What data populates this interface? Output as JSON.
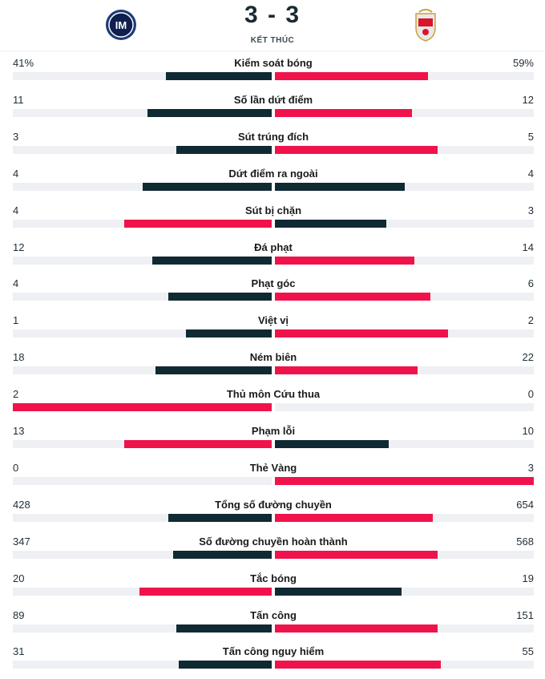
{
  "match": {
    "home_logo": "inter-logo",
    "away_logo": "benfica-logo",
    "score": "3 - 3",
    "status": "KẾT THÚC"
  },
  "colors": {
    "dark": "#0f2a33",
    "red": "#f0134b",
    "track": "#eef0f3"
  },
  "stats": [
    {
      "name": "Kiểm soát bóng",
      "home": "41%",
      "away": "59%",
      "home_frac": 0.41,
      "away_frac": 0.59,
      "home_color": "dark",
      "away_color": "red"
    },
    {
      "name": "Số lần dứt điểm",
      "home": "11",
      "away": "12",
      "home_frac": 0.48,
      "away_frac": 0.53,
      "home_color": "dark",
      "away_color": "red"
    },
    {
      "name": "Sút trúng đích",
      "home": "3",
      "away": "5",
      "home_frac": 0.37,
      "away_frac": 0.63,
      "home_color": "dark",
      "away_color": "red"
    },
    {
      "name": "Dứt điểm ra ngoài",
      "home": "4",
      "away": "4",
      "home_frac": 0.5,
      "away_frac": 0.5,
      "home_color": "dark",
      "away_color": "dark"
    },
    {
      "name": "Sút bị chặn",
      "home": "4",
      "away": "3",
      "home_frac": 0.57,
      "away_frac": 0.43,
      "home_color": "red",
      "away_color": "dark"
    },
    {
      "name": "Đá phạt",
      "home": "12",
      "away": "14",
      "home_frac": 0.46,
      "away_frac": 0.54,
      "home_color": "dark",
      "away_color": "red"
    },
    {
      "name": "Phạt góc",
      "home": "4",
      "away": "6",
      "home_frac": 0.4,
      "away_frac": 0.6,
      "home_color": "dark",
      "away_color": "red"
    },
    {
      "name": "Việt vị",
      "home": "1",
      "away": "2",
      "home_frac": 0.33,
      "away_frac": 0.67,
      "home_color": "dark",
      "away_color": "red"
    },
    {
      "name": "Ném biên",
      "home": "18",
      "away": "22",
      "home_frac": 0.45,
      "away_frac": 0.55,
      "home_color": "dark",
      "away_color": "red"
    },
    {
      "name": "Thủ môn Cứu thua",
      "home": "2",
      "away": "0",
      "home_frac": 1.0,
      "away_frac": 0.0,
      "home_color": "red",
      "away_color": "dark"
    },
    {
      "name": "Phạm lỗi",
      "home": "13",
      "away": "10",
      "home_frac": 0.57,
      "away_frac": 0.44,
      "home_color": "red",
      "away_color": "dark"
    },
    {
      "name": "Thẻ Vàng",
      "home": "0",
      "away": "3",
      "home_frac": 0.0,
      "away_frac": 1.0,
      "home_color": "dark",
      "away_color": "red"
    },
    {
      "name": "Tổng số đường chuyền",
      "home": "428",
      "away": "654",
      "home_frac": 0.4,
      "away_frac": 0.61,
      "home_color": "dark",
      "away_color": "red"
    },
    {
      "name": "Số đường chuyền hoàn thành",
      "home": "347",
      "away": "568",
      "home_frac": 0.38,
      "away_frac": 0.63,
      "home_color": "dark",
      "away_color": "red"
    },
    {
      "name": "Tắc bóng",
      "home": "20",
      "away": "19",
      "home_frac": 0.51,
      "away_frac": 0.49,
      "home_color": "red",
      "away_color": "dark"
    },
    {
      "name": "Tấn công",
      "home": "89",
      "away": "151",
      "home_frac": 0.37,
      "away_frac": 0.63,
      "home_color": "dark",
      "away_color": "red"
    },
    {
      "name": "Tấn công nguy hiểm",
      "home": "31",
      "away": "55",
      "home_frac": 0.36,
      "away_frac": 0.64,
      "home_color": "dark",
      "away_color": "red"
    }
  ]
}
